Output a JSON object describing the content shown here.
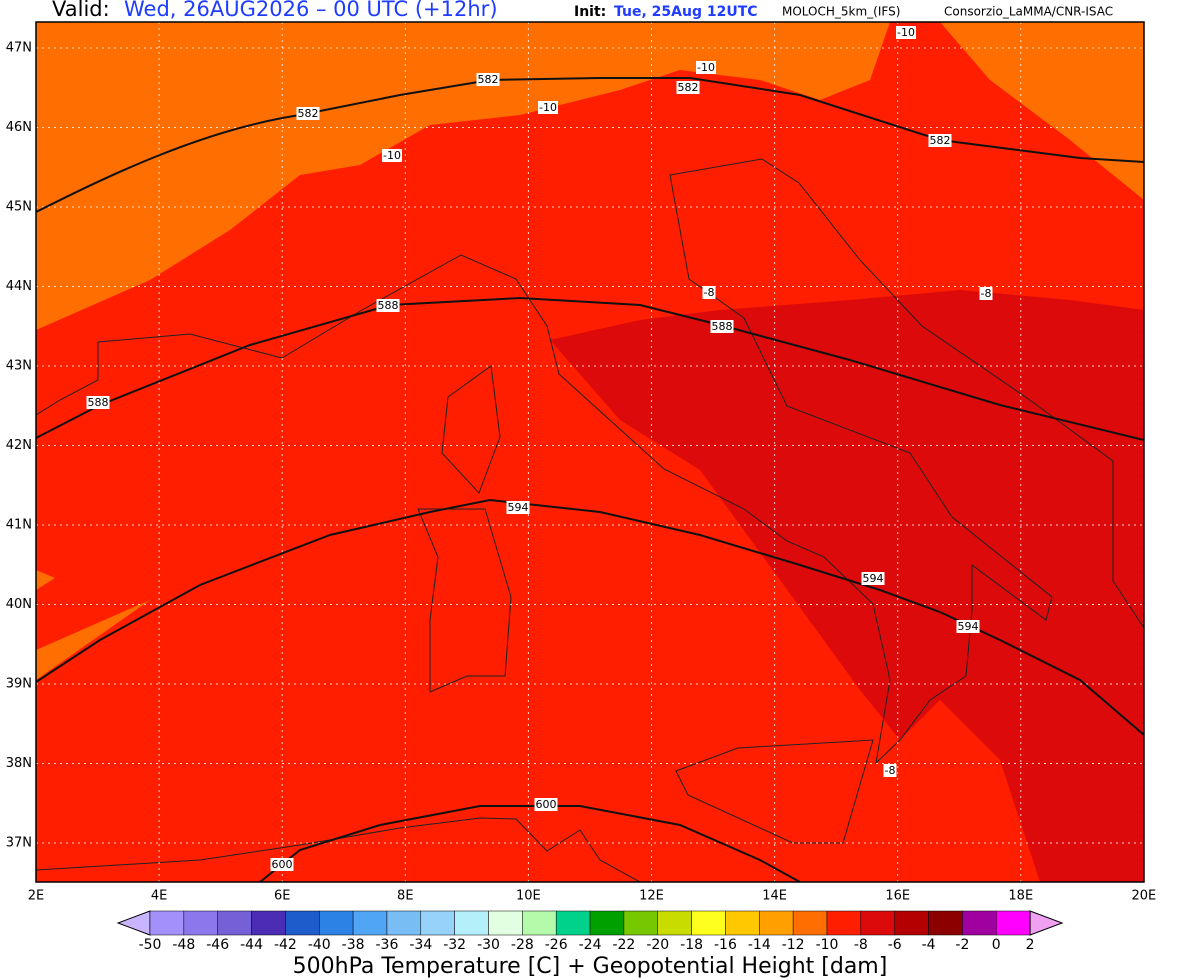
{
  "header": {
    "valid_label": "Valid:",
    "valid": "Wed, 26AUG2026 – 00 UTC (+12hr)",
    "init_label": "Init:",
    "init": "Tue, 25Aug 12UTC",
    "model": "MOLOCH_5km_(IFS)",
    "credit": "Consorzio_LaMMA/CNR-ISAC"
  },
  "map": {
    "lat_labels": [
      "47N",
      "46N",
      "45N",
      "44N",
      "43N",
      "42N",
      "41N",
      "40N",
      "39N",
      "38N",
      "37N"
    ],
    "lon_labels": [
      "2E",
      "4E",
      "6E",
      "8E",
      "10E",
      "12E",
      "14E",
      "16E",
      "18E",
      "20E"
    ],
    "contour_labels": [
      "582",
      "582",
      "582",
      "582",
      "588",
      "588",
      "588",
      "594",
      "594",
      "594",
      "600",
      "600",
      "-10",
      "-10",
      "-10",
      "-10",
      "-8",
      "-8",
      "-8"
    ]
  },
  "colorbar": {
    "labels": [
      "-50",
      "-48",
      "-46",
      "-44",
      "-42",
      "-40",
      "-38",
      "-36",
      "-34",
      "-32",
      "-30",
      "-28",
      "-26",
      "-24",
      "-22",
      "-20",
      "-18",
      "-16",
      "-14",
      "-12",
      "-10",
      "-8",
      "-6",
      "-4",
      "-2",
      "0",
      "2"
    ],
    "colors": [
      "#a391f9",
      "#8c78ec",
      "#7560d8",
      "#4b2cb4",
      "#1e5ccc",
      "#2d82e6",
      "#50a5f5",
      "#78bef5",
      "#96d2fa",
      "#b4f0fa",
      "#e1ffe1",
      "#b4faaa",
      "#00d28c",
      "#00a000",
      "#78c800",
      "#c8dc00",
      "#ffff1e",
      "#ffc800",
      "#ffa000",
      "#ff6e00",
      "#ff1e00",
      "#dc0a0a",
      "#b40000",
      "#8c0000",
      "#a000a0",
      "#ff00ff"
    ],
    "title": "500hPa Temperature [C] + Geopotential Height [dam]"
  }
}
